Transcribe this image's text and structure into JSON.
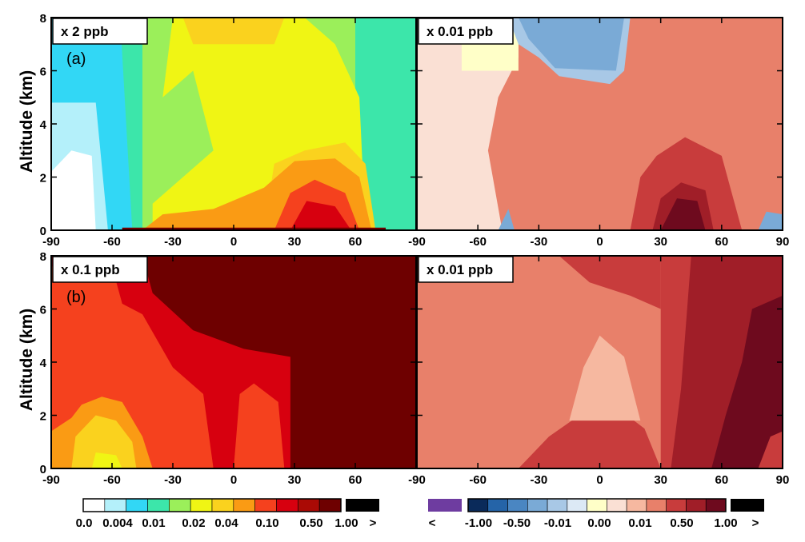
{
  "figure": {
    "ylabel": "Altitude (km)",
    "panel_labels": [
      "(a)",
      "(b)"
    ]
  },
  "chart_data": [
    {
      "type": "heatmap",
      "panel": "(a) left",
      "scale_label": "x 2 ppb",
      "xlim": [
        -90,
        90
      ],
      "ylim": [
        0,
        8
      ],
      "x_ticks": [
        "-90",
        "-60",
        "-30",
        "0",
        "30",
        "60"
      ],
      "y_ticks": [
        "0",
        "2",
        "4",
        "6",
        "8"
      ],
      "colorbar": "sequential"
    },
    {
      "type": "heatmap",
      "panel": "(a) right",
      "scale_label": "x 0.01 ppb",
      "xlim": [
        -90,
        90
      ],
      "ylim": [
        0,
        8
      ],
      "x_ticks": [
        "-90",
        "-60",
        "-30",
        "0",
        "30",
        "60",
        "90"
      ],
      "y_ticks": [],
      "colorbar": "diverging"
    },
    {
      "type": "heatmap",
      "panel": "(b) left",
      "scale_label": "x 0.1 ppb",
      "xlim": [
        -90,
        90
      ],
      "ylim": [
        0,
        8
      ],
      "x_ticks": [
        "-90",
        "-60",
        "-30",
        "0",
        "30",
        "60"
      ],
      "y_ticks": [
        "0",
        "2",
        "4",
        "6",
        "8"
      ],
      "colorbar": "sequential"
    },
    {
      "type": "heatmap",
      "panel": "(b) right",
      "scale_label": "x 0.01 ppb",
      "xlim": [
        -90,
        90
      ],
      "ylim": [
        0,
        8
      ],
      "x_ticks": [
        "-90",
        "-60",
        "-30",
        "0",
        "30",
        "60",
        "90"
      ],
      "y_ticks": [],
      "colorbar": "diverging"
    }
  ],
  "colorbars": {
    "sequential": {
      "colors": [
        "#ffffff",
        "#b4f0fa",
        "#32d7f5",
        "#3ce6aa",
        "#9bef5a",
        "#f0f514",
        "#fad21e",
        "#fa9b14",
        "#f5411e",
        "#d7000f",
        "#aa0a05",
        "#6e0000"
      ],
      "over_color": "#000000",
      "labels": [
        "0.0",
        "0.004",
        "0.01",
        "0.02",
        "0.04",
        "0.10",
        "0.50",
        "1.00",
        ">"
      ]
    },
    "diverging": {
      "under_color": "#6e3ca0",
      "colors": [
        "#0a2a5a",
        "#2564a8",
        "#4a86c2",
        "#7aaad6",
        "#a8c8e6",
        "#dce9f5",
        "#ffffc8",
        "#fae0d4",
        "#f6b8a0",
        "#e8806a",
        "#c83c3c",
        "#a01e28",
        "#6e0a1e"
      ],
      "over_color": "#000000",
      "labels": [
        "<",
        "-1.00",
        "-0.50",
        "-0.01",
        "0.00",
        "0.01",
        "0.50",
        "1.00",
        ">"
      ]
    }
  }
}
